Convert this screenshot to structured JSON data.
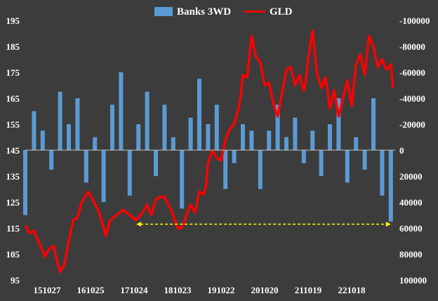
{
  "chart_data": {
    "type": "bar+line",
    "title": "",
    "legend": {
      "placement": "top",
      "items": [
        {
          "label": "Banks 3WD",
          "color": "#5b9bd5",
          "kind": "bar"
        },
        {
          "label": "GLD",
          "color": "#ff0000",
          "kind": "line"
        }
      ]
    },
    "x_ticks": [
      "151027",
      "161025",
      "171024",
      "181023",
      "191022",
      "201020",
      "211019",
      "221018"
    ],
    "left_axis": {
      "min": 95,
      "max": 195,
      "ticks": [
        "195",
        "185",
        "175",
        "165",
        "155",
        "145",
        "135",
        "125",
        "115",
        "105",
        "95"
      ]
    },
    "right_axis": {
      "min": 100000,
      "max": -100000,
      "inverted": true,
      "ticks": [
        "-100000",
        "-80000",
        "-60000",
        "-40000",
        "-20000",
        "0",
        "20000",
        "40000",
        "60000",
        "80000",
        "100000"
      ]
    },
    "x_range": [
      0,
      8.5
    ],
    "series": [
      {
        "name": "GLD",
        "axis": "left",
        "color": "#ff0000",
        "x": [
          0,
          0.1,
          0.2,
          0.3,
          0.45,
          0.55,
          0.65,
          0.72,
          0.8,
          0.9,
          1.0,
          1.1,
          1.2,
          1.3,
          1.45,
          1.55,
          1.7,
          1.85,
          1.95,
          2.1,
          2.25,
          2.4,
          2.55,
          2.7,
          2.8,
          2.9,
          3.0,
          3.1,
          3.2,
          3.35,
          3.5,
          3.6,
          3.7,
          3.8,
          3.9,
          4.0,
          4.1,
          4.15,
          4.2,
          4.3,
          4.4,
          4.5,
          4.6,
          4.7,
          4.8,
          4.9,
          4.95,
          5.0,
          5.1,
          5.2,
          5.3,
          5.4,
          5.5,
          5.6,
          5.7,
          5.8,
          5.9,
          6.0,
          6.1,
          6.2,
          6.3,
          6.4,
          6.45,
          6.5,
          6.6,
          6.7,
          6.8,
          6.9,
          7.0,
          7.1,
          7.2,
          7.3,
          7.4,
          7.5,
          7.6,
          7.7,
          7.8,
          7.9,
          8.0,
          8.1,
          8.2,
          8.3,
          8.4,
          8.45
        ],
        "values": [
          116,
          113,
          114,
          110,
          104,
          107,
          108,
          103,
          98,
          101,
          110,
          118,
          119,
          125,
          129,
          126,
          121,
          112,
          118,
          120,
          122,
          120,
          118,
          121,
          124,
          120,
          126,
          127,
          127,
          122,
          115,
          115,
          120,
          124,
          121,
          129,
          128,
          131,
          140,
          145,
          142,
          141,
          149,
          153,
          155,
          161,
          166,
          174,
          173,
          189,
          181,
          179,
          170,
          171,
          163,
          158,
          167,
          176,
          177,
          170,
          174,
          168,
          172,
          180,
          191,
          175,
          169,
          173,
          161,
          168,
          158,
          165,
          172,
          162,
          178,
          182,
          174,
          189,
          185,
          177,
          180,
          176,
          178,
          169
        ]
      },
      {
        "name": "Banks 3WD",
        "axis": "right",
        "color": "#5b9bd5",
        "x": [
          0,
          0.2,
          0.4,
          0.6,
          0.8,
          1.0,
          1.2,
          1.4,
          1.6,
          1.8,
          2.0,
          2.2,
          2.4,
          2.6,
          2.8,
          3.0,
          3.2,
          3.4,
          3.6,
          3.8,
          4.0,
          4.2,
          4.4,
          4.6,
          4.8,
          5.0,
          5.2,
          5.4,
          5.6,
          5.8,
          6.0,
          6.2,
          6.4,
          6.6,
          6.8,
          7.0,
          7.2,
          7.4,
          7.6,
          7.8,
          8.0,
          8.2,
          8.4
        ],
        "values": [
          50000,
          -30000,
          -15000,
          15000,
          -45000,
          -20000,
          -40000,
          25000,
          -10000,
          40000,
          -35000,
          -60000,
          35000,
          -20000,
          -45000,
          20000,
          -35000,
          -10000,
          45000,
          -25000,
          -55000,
          -20000,
          -35000,
          30000,
          10000,
          -20000,
          -15000,
          30000,
          -15000,
          -35000,
          -10000,
          -25000,
          10000,
          -15000,
          20000,
          -20000,
          -40000,
          25000,
          -10000,
          15000,
          -40000,
          35000,
          55000
        ]
      }
    ],
    "annotations": [
      {
        "type": "double-arrow",
        "style": "dashed",
        "color": "#ffff00",
        "value": 116.5,
        "x_from": 2.55,
        "x_to": 8.4
      }
    ],
    "grid": false
  }
}
